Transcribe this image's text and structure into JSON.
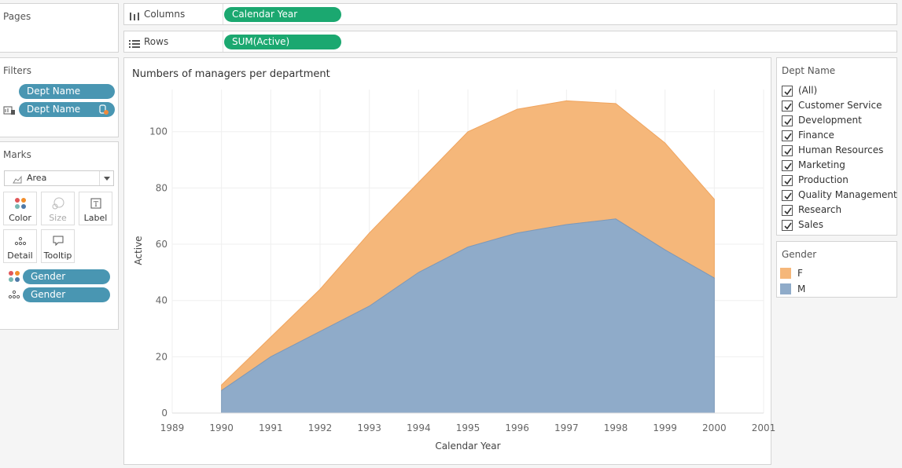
{
  "pages": {
    "title": "Pages"
  },
  "filters": {
    "title": "Filters",
    "items": [
      {
        "label": "Dept Name"
      },
      {
        "label": "Dept Name"
      }
    ]
  },
  "marks": {
    "title": "Marks",
    "mark_type": "Area",
    "buttons": [
      {
        "label": "Color"
      },
      {
        "label": "Size"
      },
      {
        "label": "Label"
      },
      {
        "label": "Detail"
      },
      {
        "label": "Tooltip"
      }
    ],
    "fields": [
      {
        "label": "Gender",
        "role": "color"
      },
      {
        "label": "Gender",
        "role": "detail"
      }
    ]
  },
  "columns": {
    "label": "Columns",
    "pill": "Calendar Year"
  },
  "rows": {
    "label": "Rows",
    "pill": "SUM(Active)"
  },
  "dept_filter": {
    "title": "Dept Name",
    "items": [
      "(All)",
      "Customer Service",
      "Development",
      "Finance",
      "Human Resources",
      "Marketing",
      "Production",
      "Quality Management",
      "Research",
      "Sales"
    ]
  },
  "gender_legend": {
    "title": "Gender",
    "items": [
      {
        "label": "F",
        "color": "#f5b77a"
      },
      {
        "label": "M",
        "color": "#8fabc9"
      }
    ]
  },
  "colors": {
    "pill_blue": "#4996b2",
    "pill_green": "#1ba870",
    "series_f": "#f5b77a",
    "series_m": "#8fabc9"
  },
  "chart_data": {
    "type": "area",
    "title": "Numbers of managers per department",
    "xlabel": "Calendar Year",
    "ylabel": "Active",
    "x_ticks": [
      1989,
      1990,
      1991,
      1992,
      1993,
      1994,
      1995,
      1996,
      1997,
      1998,
      1999,
      2000,
      2001
    ],
    "y_ticks": [
      0,
      20,
      40,
      60,
      80,
      100
    ],
    "xlim": [
      1989,
      2001
    ],
    "ylim": [
      0,
      115
    ],
    "x": [
      1990,
      1991,
      1992,
      1993,
      1994,
      1995,
      1996,
      1997,
      1998,
      1999,
      2000
    ],
    "stacked": true,
    "grid": true,
    "series": [
      {
        "name": "M",
        "values": [
          8,
          20,
          29,
          38,
          50,
          59,
          64,
          67,
          69,
          58,
          48
        ]
      },
      {
        "name": "F",
        "values": [
          2,
          7,
          15,
          26,
          32,
          41,
          44,
          44,
          41,
          38,
          28
        ]
      }
    ]
  }
}
